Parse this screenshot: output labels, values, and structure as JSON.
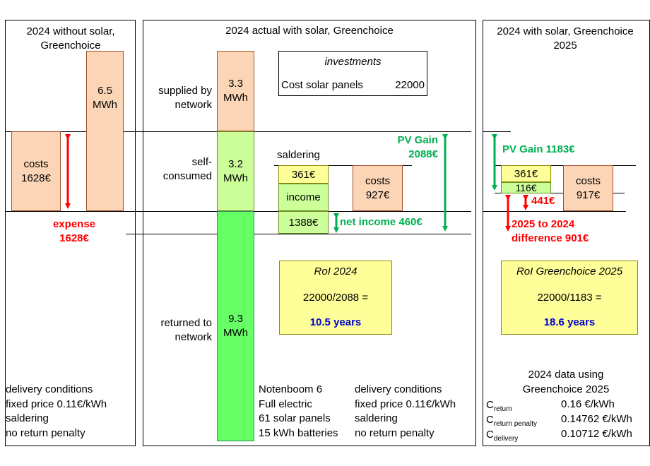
{
  "panels": {
    "left_title": "2024 without solar, Greenchoice",
    "middle_title": "2024 actual with solar, Greenchoice",
    "right_title": "2024 with solar, Greenchoice 2025"
  },
  "left": {
    "costs_label": "costs",
    "costs_value": "1628€",
    "mwh_value": "6.5",
    "mwh_unit": "MWh",
    "expense_label": "expense",
    "expense_value": "1628€",
    "conditions": [
      "delivery conditions",
      "fixed price 0.11€/kWh",
      "saldering",
      "no return penalty"
    ]
  },
  "middle": {
    "supplied_label": "supplied by network",
    "supplied_value": "3.3",
    "supplied_unit": "MWh",
    "self_label": "self-consumed",
    "self_value": "3.2",
    "self_unit": "MWh",
    "returned_label": "returned to network",
    "returned_value": "9.3",
    "returned_unit": "MWh",
    "investments_title": "investments",
    "investments_item": "Cost solar panels",
    "investments_value": "22000",
    "saldering_label": "saldering",
    "saldering_value": "361€",
    "income_label": "income",
    "income_value": "1388€",
    "costs_label": "costs",
    "costs_value": "927€",
    "net_income": "net income 460€",
    "pv_gain_label": "PV Gain",
    "pv_gain_value": "2088€",
    "roi_title": "RoI 2024",
    "roi_formula": "22000/2088 =",
    "roi_result": "10.5 years",
    "house_info": [
      "Notenboom 6",
      "Full electric",
      "61 solar panels",
      "15 kWh batteries"
    ],
    "conditions": [
      "delivery conditions",
      "fixed price 0.11€/kWh",
      "saldering",
      "no return penalty"
    ]
  },
  "right": {
    "pv_gain": "PV Gain 1183€",
    "saldering_value": "361€",
    "penalty_value": "116€",
    "costs_label": "costs",
    "costs_value": "917€",
    "diff_small": "441€",
    "difference_line1": "2025 to 2024",
    "difference_line2": "difference  901€",
    "roi_title": "RoI Greenchoice 2025",
    "roi_formula": "22000/1183 =",
    "roi_result": "18.6 years",
    "data_title_1": "2024 data using",
    "data_title_2": "Greenchoice 2025",
    "rates": [
      {
        "c": "C",
        "sub": "return",
        "value": "0.16 €/kWh"
      },
      {
        "c": "C",
        "sub": "return penalty",
        "value": "0.14762 €/kWh"
      },
      {
        "c": "C",
        "sub": "delivery",
        "value": "0.10712 €/kWh"
      }
    ]
  },
  "colors": {
    "peach": "#fbd5b5",
    "light_green": "#ccff99",
    "green": "#66ff66",
    "yellow": "#ffff99",
    "red_arrow": "#ff0000",
    "green_arrow": "#00b050",
    "blue_text": "#0000cc"
  }
}
